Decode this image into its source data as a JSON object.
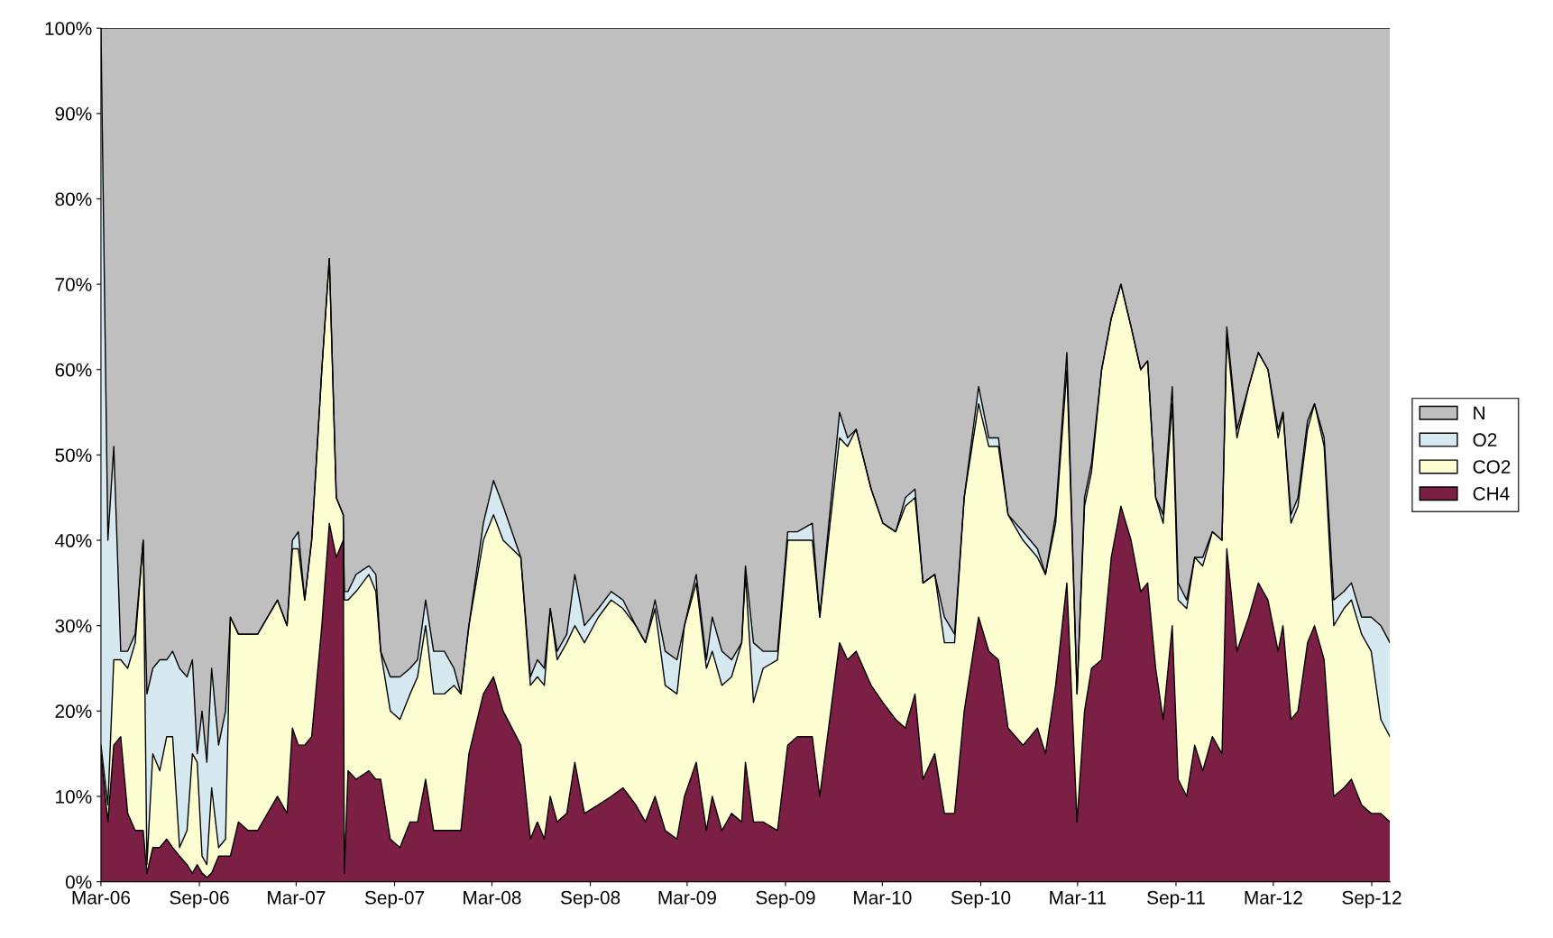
{
  "chart_data": {
    "type": "area",
    "stacked": true,
    "legend": "right",
    "grid": false,
    "x": [
      "2006-03-01",
      "2006-03-14",
      "2006-03-25",
      "2006-04-07",
      "2006-04-20",
      "2006-05-04",
      "2006-05-19",
      "2006-05-26",
      "2006-06-06",
      "2006-06-19",
      "2006-07-02",
      "2006-07-13",
      "2006-07-26",
      "2006-08-09",
      "2006-08-19",
      "2006-08-28",
      "2006-09-06",
      "2006-09-15",
      "2006-09-24",
      "2006-10-07",
      "2006-10-20",
      "2006-10-29",
      "2006-11-13",
      "2006-12-01",
      "2006-12-19",
      "2007-01-25",
      "2007-02-12",
      "2007-02-22",
      "2007-03-05",
      "2007-03-17",
      "2007-03-30",
      "2007-04-18",
      "2007-05-02",
      "2007-05-15",
      "2007-05-28",
      "2007-05-30",
      "2007-06-06",
      "2007-06-21",
      "2007-07-15",
      "2007-07-28",
      "2007-08-06",
      "2007-08-24",
      "2007-09-11",
      "2007-09-30",
      "2007-10-14",
      "2007-10-29",
      "2007-11-13",
      "2007-12-03",
      "2007-12-21",
      "2008-01-03",
      "2008-01-18",
      "2008-02-14",
      "2008-03-04",
      "2008-03-22",
      "2008-04-24",
      "2008-05-12",
      "2008-05-25",
      "2008-06-07",
      "2008-06-18",
      "2008-07-01",
      "2008-07-19",
      "2008-08-03",
      "2008-08-21",
      "2008-09-16",
      "2008-10-10",
      "2008-11-01",
      "2008-11-25",
      "2008-12-13",
      "2008-12-31",
      "2009-01-19",
      "2009-02-10",
      "2009-02-24",
      "2009-03-18",
      "2009-04-06",
      "2009-04-17",
      "2009-05-05",
      "2009-05-23",
      "2009-06-11",
      "2009-06-18",
      "2009-07-03",
      "2009-07-21",
      "2009-08-17",
      "2009-09-05",
      "2009-09-23",
      "2009-10-21",
      "2009-11-04",
      "2009-12-11",
      "2009-12-26",
      "2010-01-11",
      "2010-02-08",
      "2010-03-02",
      "2010-03-26",
      "2010-04-13",
      "2010-05-01",
      "2010-05-16",
      "2010-06-07",
      "2010-06-25",
      "2010-07-14",
      "2010-08-01",
      "2010-08-28",
      "2010-09-16",
      "2010-10-04",
      "2010-10-22",
      "2010-11-19",
      "2010-12-16",
      "2010-12-31",
      "2011-01-19",
      "2011-02-09",
      "2011-02-28",
      "2011-03-14",
      "2011-03-27",
      "2011-04-15",
      "2011-05-03",
      "2011-05-21",
      "2011-06-09",
      "2011-06-27",
      "2011-07-10",
      "2011-07-25",
      "2011-08-08",
      "2011-08-25",
      "2011-09-05",
      "2011-09-21",
      "2011-10-06",
      "2011-10-21",
      "2011-11-08",
      "2011-11-26",
      "2011-12-05",
      "2011-12-24",
      "2012-01-15",
      "2012-02-02",
      "2012-02-20",
      "2012-03-10",
      "2012-03-19",
      "2012-04-03",
      "2012-04-16",
      "2012-05-04",
      "2012-05-17",
      "2012-06-04",
      "2012-06-22",
      "2012-07-11",
      "2012-07-25",
      "2012-08-13",
      "2012-08-31",
      "2012-09-18",
      "2012-10-05"
    ],
    "series": [
      {
        "name": "CH4",
        "color": "#7b1f45",
        "values": [
          15,
          7,
          16,
          17,
          8,
          6,
          6,
          1,
          4,
          4,
          5,
          4,
          3,
          2,
          1,
          2,
          1,
          0.5,
          1,
          3,
          3,
          3,
          7,
          6,
          6,
          10,
          8,
          18,
          16,
          16,
          17,
          30,
          42,
          38,
          40,
          1,
          13,
          12,
          13,
          12,
          12,
          5,
          4,
          7,
          7,
          12,
          6,
          6,
          6,
          6,
          15,
          22,
          24,
          20,
          16,
          5,
          7,
          5,
          10,
          7,
          8,
          14,
          8,
          9,
          10,
          11,
          9,
          7,
          10,
          6,
          5,
          10,
          14,
          6,
          10,
          6,
          8,
          7,
          14,
          7,
          7,
          6,
          16,
          17,
          17,
          10,
          28,
          26,
          27,
          23,
          21,
          19,
          18,
          22,
          12,
          15,
          8,
          8,
          20,
          31,
          27,
          26,
          18,
          16,
          18,
          15,
          23,
          35,
          7,
          20,
          25,
          26,
          38,
          44,
          40,
          34,
          35,
          25,
          19,
          30,
          12,
          10,
          16,
          13,
          17,
          15,
          39,
          27,
          31,
          35,
          33,
          27,
          30,
          19,
          20,
          28,
          30,
          26,
          10,
          11,
          12,
          9,
          8,
          8,
          7
        ]
      },
      {
        "name": "CO2",
        "color": "#fdfdd2",
        "values": [
          1,
          2,
          10,
          9,
          17,
          22,
          34,
          1,
          11,
          9,
          12,
          13,
          1,
          4,
          14,
          12,
          2,
          1.5,
          10,
          1,
          2,
          28,
          22,
          23,
          23,
          23,
          22,
          21,
          23,
          17,
          23,
          30,
          31,
          7,
          3,
          32,
          20,
          22,
          23,
          22,
          15,
          15,
          15,
          15,
          17,
          18,
          16,
          16,
          17,
          16,
          15,
          18,
          19,
          20,
          22,
          18,
          17,
          18,
          22,
          19,
          20,
          16,
          20,
          22,
          23,
          21,
          21,
          21,
          22,
          17,
          17,
          20,
          21,
          19,
          17,
          17,
          16,
          21,
          22,
          14,
          18,
          20,
          24,
          23,
          23,
          21,
          24,
          25,
          26,
          23,
          21,
          22,
          26,
          23,
          23,
          21,
          20,
          20,
          25,
          25,
          24,
          25,
          25,
          24,
          20,
          21,
          19,
          25,
          15,
          24,
          23,
          34,
          28,
          26,
          25,
          26,
          26,
          20,
          23,
          26,
          21,
          22,
          22,
          24,
          24,
          25,
          25,
          25,
          27,
          27,
          27,
          25,
          25,
          23,
          24,
          25,
          26,
          25,
          20,
          21,
          21,
          20,
          19,
          11,
          10
        ]
      },
      {
        "name": "O2",
        "color": "#d6e9f0",
        "values": [
          84,
          31,
          25,
          1,
          2,
          1,
          0,
          20,
          10,
          13,
          9,
          10,
          21,
          18,
          11,
          1,
          17,
          12,
          14,
          12,
          15,
          0,
          0,
          0,
          0,
          0,
          0,
          1,
          2,
          0,
          0,
          0,
          0,
          0,
          0,
          1,
          1,
          2,
          1,
          2,
          0,
          4,
          5,
          3,
          2,
          3,
          5,
          5,
          2,
          0,
          0,
          2,
          4,
          4,
          0,
          1,
          2,
          2,
          0,
          1,
          1,
          6,
          2,
          1,
          1,
          1,
          0,
          0,
          1,
          4,
          4,
          0,
          1,
          1,
          4,
          4,
          2,
          0,
          1,
          7,
          2,
          1,
          1,
          1,
          2,
          0,
          3,
          1,
          0,
          0,
          0,
          0,
          1,
          1,
          0,
          0,
          3,
          1,
          0,
          2,
          1,
          1,
          0,
          1,
          1,
          0,
          1,
          2,
          0,
          1,
          1,
          0,
          0,
          0,
          0,
          0,
          0,
          0,
          1,
          2,
          2,
          1,
          0,
          1,
          0,
          0,
          1,
          1,
          0,
          0,
          0,
          1,
          0,
          1,
          1,
          1,
          0,
          1,
          3,
          2,
          2,
          2,
          4,
          11,
          11
        ]
      },
      {
        "name": "N",
        "color": "#bfbfbf",
        "values": [
          0,
          60,
          49,
          73,
          73,
          71,
          60,
          78,
          75,
          74,
          74,
          73,
          75,
          76,
          74,
          85,
          80,
          86,
          75,
          84,
          80,
          69,
          71,
          71,
          71,
          67,
          70,
          60,
          59,
          67,
          60,
          40,
          27,
          55,
          57,
          66,
          66,
          64,
          63,
          64,
          73,
          76,
          76,
          75,
          74,
          67,
          73,
          73,
          75,
          78,
          70,
          58,
          53,
          56,
          62,
          76,
          74,
          75,
          68,
          73,
          71,
          64,
          70,
          68,
          66,
          67,
          70,
          72,
          67,
          73,
          74,
          70,
          64,
          74,
          69,
          73,
          74,
          72,
          63,
          72,
          73,
          73,
          59,
          59,
          58,
          69,
          45,
          48,
          47,
          54,
          58,
          59,
          55,
          54,
          65,
          64,
          69,
          71,
          55,
          42,
          48,
          48,
          57,
          59,
          61,
          64,
          57,
          38,
          78,
          55,
          51,
          40,
          34,
          30,
          35,
          40,
          39,
          55,
          57,
          42,
          65,
          67,
          62,
          62,
          59,
          60,
          35,
          47,
          42,
          38,
          40,
          47,
          45,
          57,
          55,
          46,
          44,
          48,
          67,
          66,
          65,
          69,
          69,
          70,
          72
        ]
      }
    ],
    "xlim": [
      "2006-03-01",
      "2012-10-05"
    ],
    "xticks": [
      {
        "value": "2006-03-01",
        "label": "Mar-06"
      },
      {
        "value": "2006-09-01",
        "label": "Sep-06"
      },
      {
        "value": "2007-03-01",
        "label": "Mar-07"
      },
      {
        "value": "2007-09-01",
        "label": "Sep-07"
      },
      {
        "value": "2008-03-01",
        "label": "Mar-08"
      },
      {
        "value": "2008-09-01",
        "label": "Sep-08"
      },
      {
        "value": "2009-03-01",
        "label": "Mar-09"
      },
      {
        "value": "2009-09-01",
        "label": "Sep-09"
      },
      {
        "value": "2010-03-01",
        "label": "Mar-10"
      },
      {
        "value": "2010-09-01",
        "label": "Sep-10"
      },
      {
        "value": "2011-03-01",
        "label": "Mar-11"
      },
      {
        "value": "2011-09-01",
        "label": "Sep-11"
      },
      {
        "value": "2012-03-01",
        "label": "Mar-12"
      },
      {
        "value": "2012-09-01",
        "label": "Sep-12"
      }
    ],
    "ylim": [
      0,
      100
    ],
    "yticks": [
      {
        "value": 0,
        "label": "0%"
      },
      {
        "value": 10,
        "label": "10%"
      },
      {
        "value": 20,
        "label": "20%"
      },
      {
        "value": 30,
        "label": "30%"
      },
      {
        "value": 40,
        "label": "40%"
      },
      {
        "value": 50,
        "label": "50%"
      },
      {
        "value": 60,
        "label": "60%"
      },
      {
        "value": 70,
        "label": "70%"
      },
      {
        "value": 80,
        "label": "80%"
      },
      {
        "value": 90,
        "label": "90%"
      },
      {
        "value": 100,
        "label": "100%"
      }
    ]
  }
}
